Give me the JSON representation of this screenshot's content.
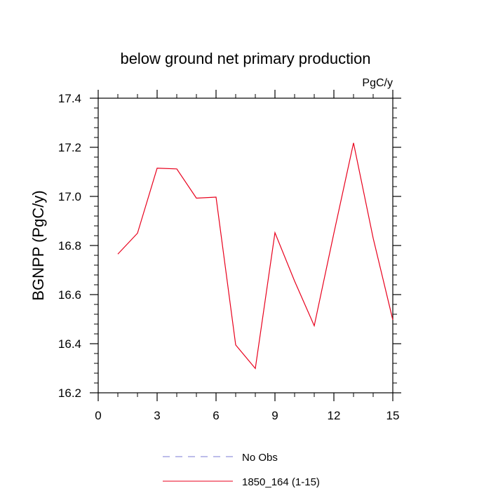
{
  "chart_data": {
    "type": "line",
    "title": "below ground net primary production",
    "units_label": "PgC/y",
    "ylabel": "BGNPP  (PgC/y)",
    "xlabel": "",
    "xlim": [
      0,
      15
    ],
    "ylim": [
      16.2,
      17.4
    ],
    "x_ticks": [
      0,
      3,
      6,
      9,
      12,
      15
    ],
    "x_tick_labels": [
      "0",
      "3",
      "6",
      "9",
      "12",
      "15"
    ],
    "y_ticks": [
      16.2,
      16.4,
      16.6,
      16.8,
      17.0,
      17.2,
      17.4
    ],
    "y_tick_labels": [
      "16.2",
      "16.4",
      "16.6",
      "16.8",
      "17.0",
      "17.2",
      "17.4"
    ],
    "grid": false,
    "legend_position": "bottom",
    "series": [
      {
        "name": "1850_164 (1-15)",
        "color": "#e8001c",
        "dash": "solid",
        "x": [
          1,
          2,
          3,
          4,
          5,
          6,
          7,
          8,
          9,
          10,
          11,
          12,
          13,
          14,
          15
        ],
        "y": [
          16.765,
          16.85,
          17.115,
          17.112,
          16.993,
          16.997,
          16.395,
          16.299,
          16.852,
          16.655,
          16.473,
          16.85,
          17.218,
          16.83,
          16.497
        ]
      }
    ],
    "legend": [
      {
        "label": "No Obs",
        "color": "#7b7bd6",
        "dash": "dashed"
      },
      {
        "label": "1850_164 (1-15)",
        "color": "#e8001c",
        "dash": "solid"
      }
    ]
  }
}
